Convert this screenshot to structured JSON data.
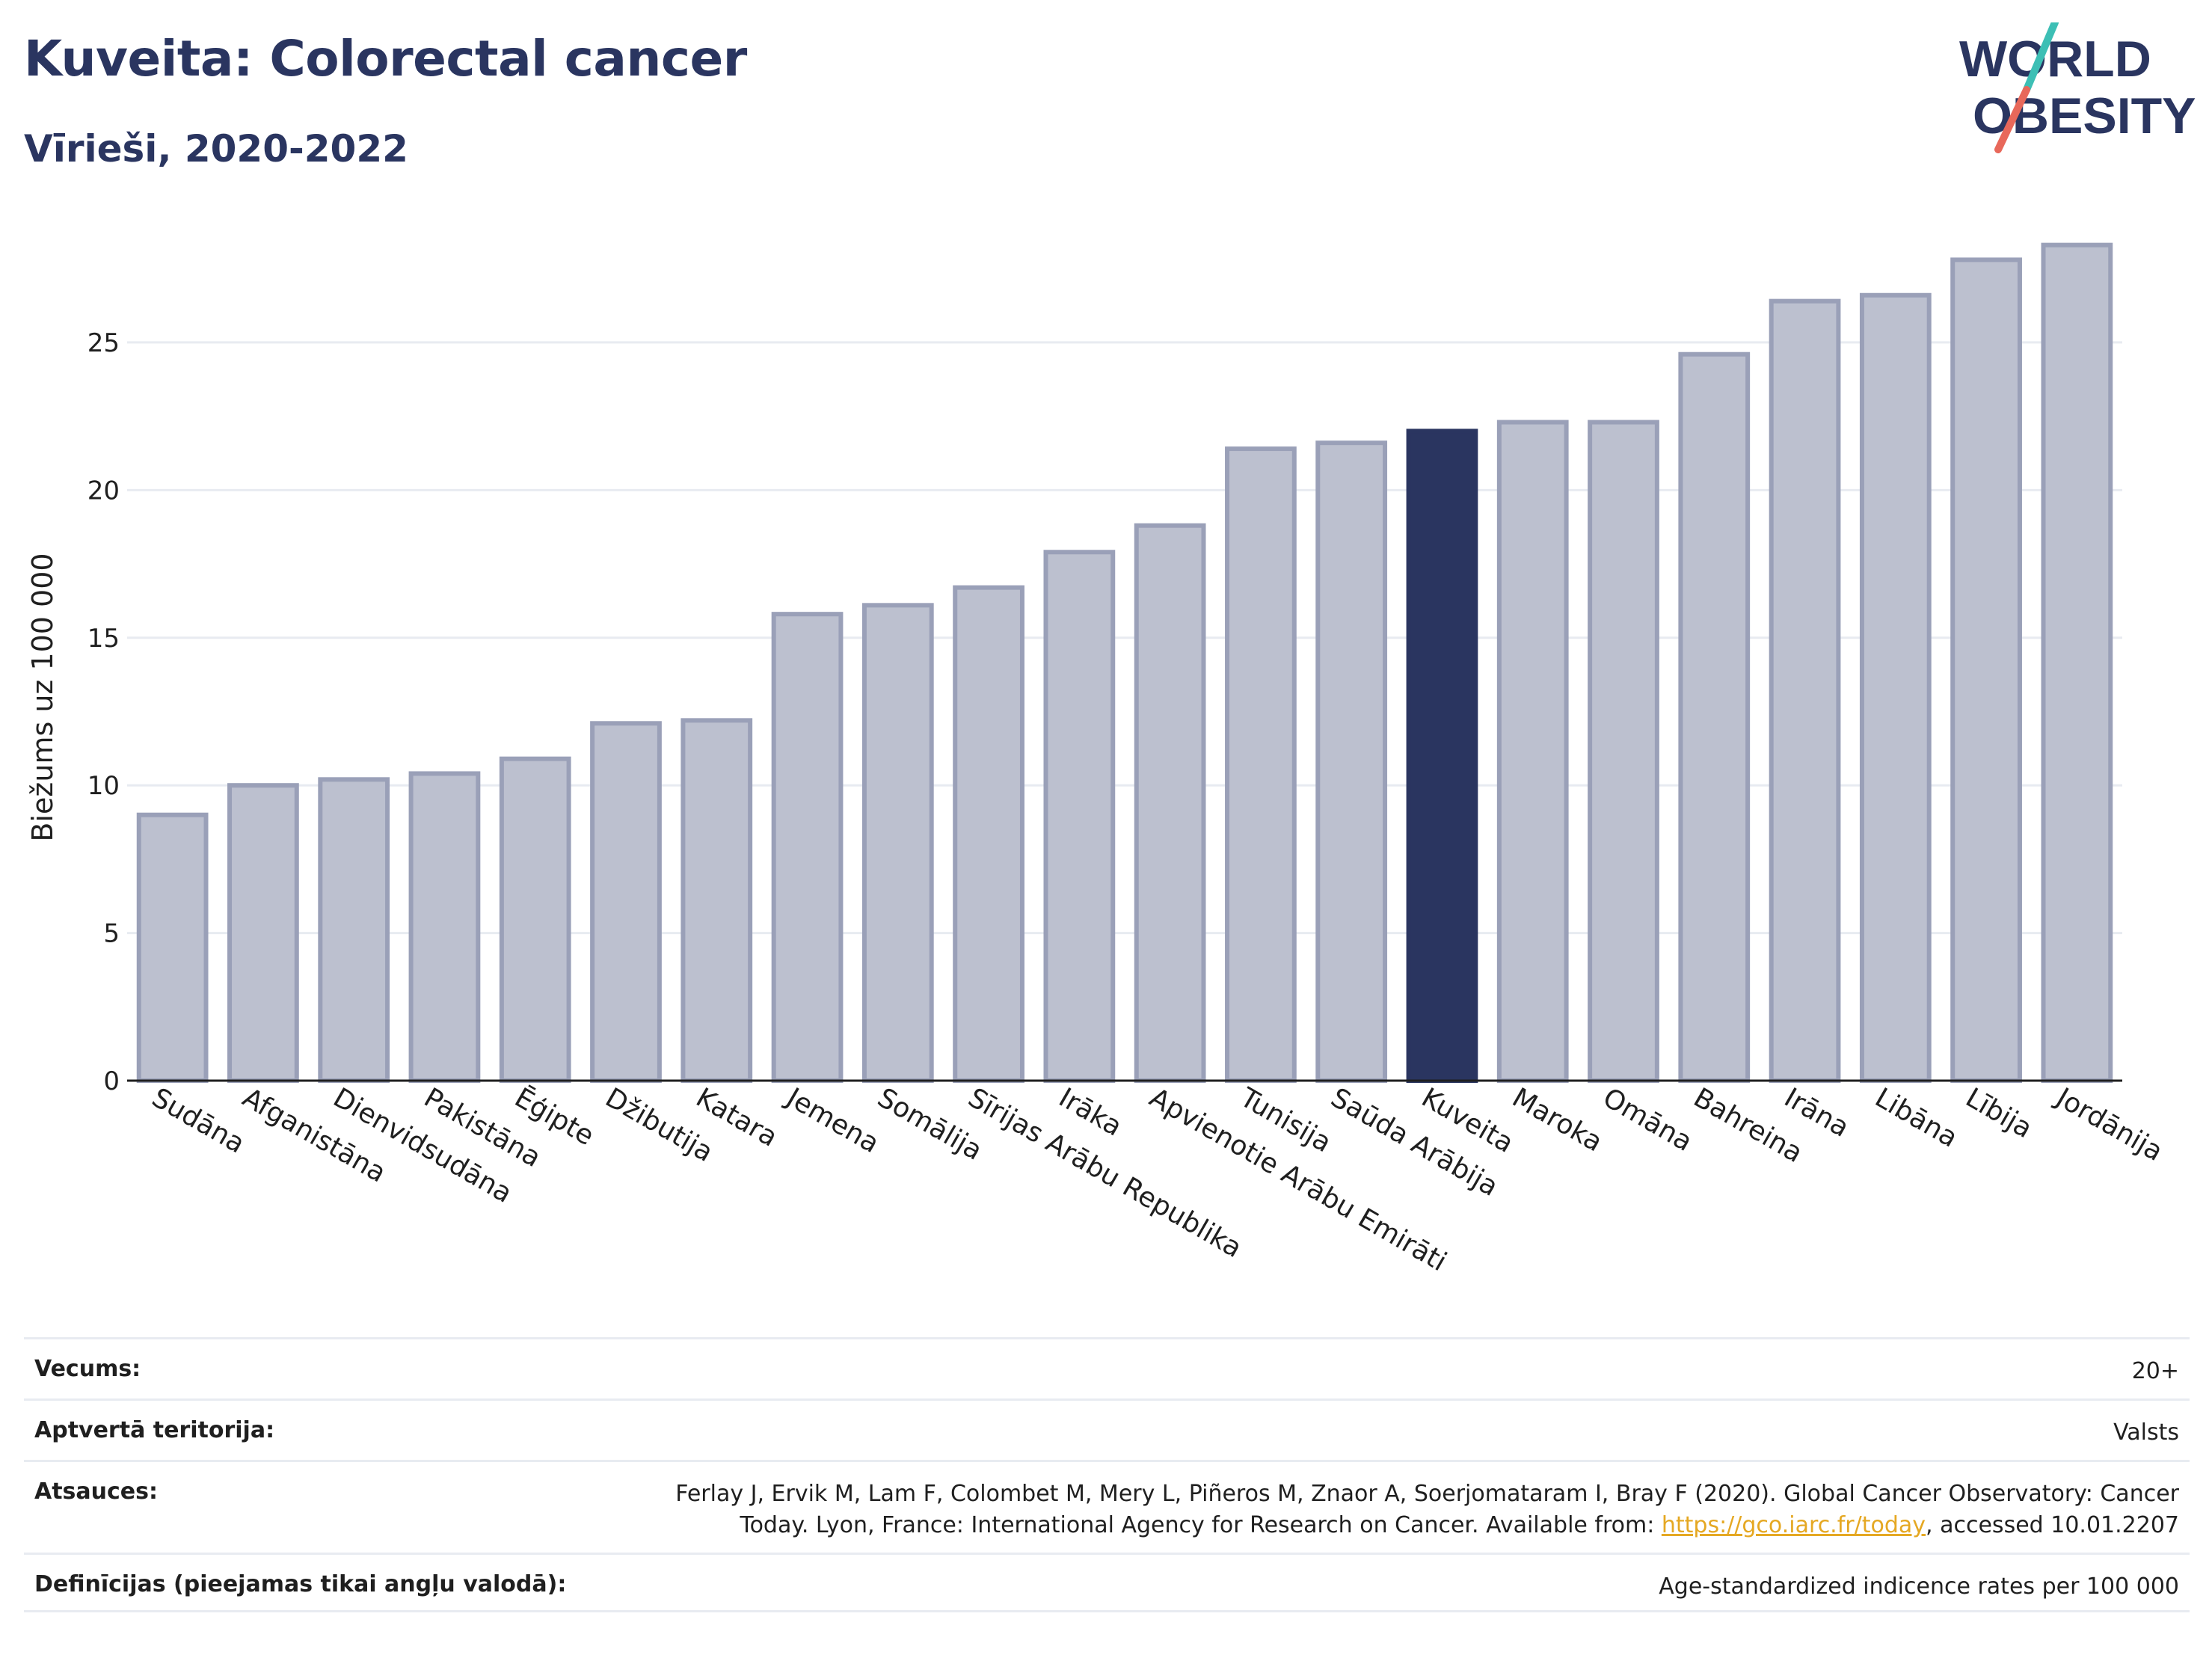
{
  "header": {
    "title": "Kuveita: Colorectal cancer",
    "subtitle": "Vīrieši, 2020-2022"
  },
  "logo": {
    "line1": "WORLD",
    "line2": "OBESITY",
    "text_color": "#2a3560",
    "slash_color_top": "#3dbfb5",
    "slash_color_bottom": "#e8685a"
  },
  "chart_data": {
    "type": "bar",
    "title": "",
    "xlabel": "",
    "ylabel": "Biežums uz 100 000",
    "ylim": [
      0,
      29
    ],
    "yticks": [
      0,
      5,
      10,
      15,
      20,
      25
    ],
    "grid": true,
    "highlight": "Kuveita",
    "colors": {
      "bar": "#bcc0cf",
      "bar_border": "#9aa0b8",
      "highlight": "#2a3560",
      "grid": "#e8ebf1",
      "axis": "#1f1f1f"
    },
    "categories": [
      "Sudāna",
      "Afganistāna",
      "Dienvidsudāna",
      "Pakistāna",
      "Ēģipte",
      "Džibutija",
      "Katara",
      "Jemena",
      "Somālija",
      "Sīrijas Arābu Republika",
      "Irāka",
      "Apvienotie Arābu Emirāti",
      "Tunisija",
      "Saūda Arābija",
      "Kuveita",
      "Maroka",
      "Omāna",
      "Bahreina",
      "Irāna",
      "Libāna",
      "Lībija",
      "Jordānija"
    ],
    "values": [
      9.0,
      10.0,
      10.2,
      10.4,
      10.9,
      12.1,
      12.2,
      15.8,
      16.1,
      16.7,
      17.9,
      18.8,
      21.4,
      21.6,
      22.0,
      22.3,
      22.3,
      24.6,
      26.4,
      26.6,
      27.8,
      28.3
    ]
  },
  "info": {
    "rows": [
      {
        "label": "Vecums:",
        "value": "20+"
      },
      {
        "label": "Aptvertā teritorija:",
        "value": "Valsts"
      },
      {
        "label": "Atsauces:",
        "value_line1": "Ferlay J, Ervik M, Lam F, Colombet M, Mery L, Piñeros M, Znaor A, Soerjomataram I, Bray F (2020). Global Cancer Observatory: Cancer",
        "value_line2_pre": "Today. Lyon, France: International Agency for Research on Cancer. Available from: ",
        "value_link": "https://gco.iarc.fr/today",
        "value_line2_post": ", accessed 10.01.2207"
      },
      {
        "label": "Definīcijas (pieejamas tikai angļu valodā):",
        "value": "Age-standardized indicence rates per 100 000"
      }
    ]
  }
}
